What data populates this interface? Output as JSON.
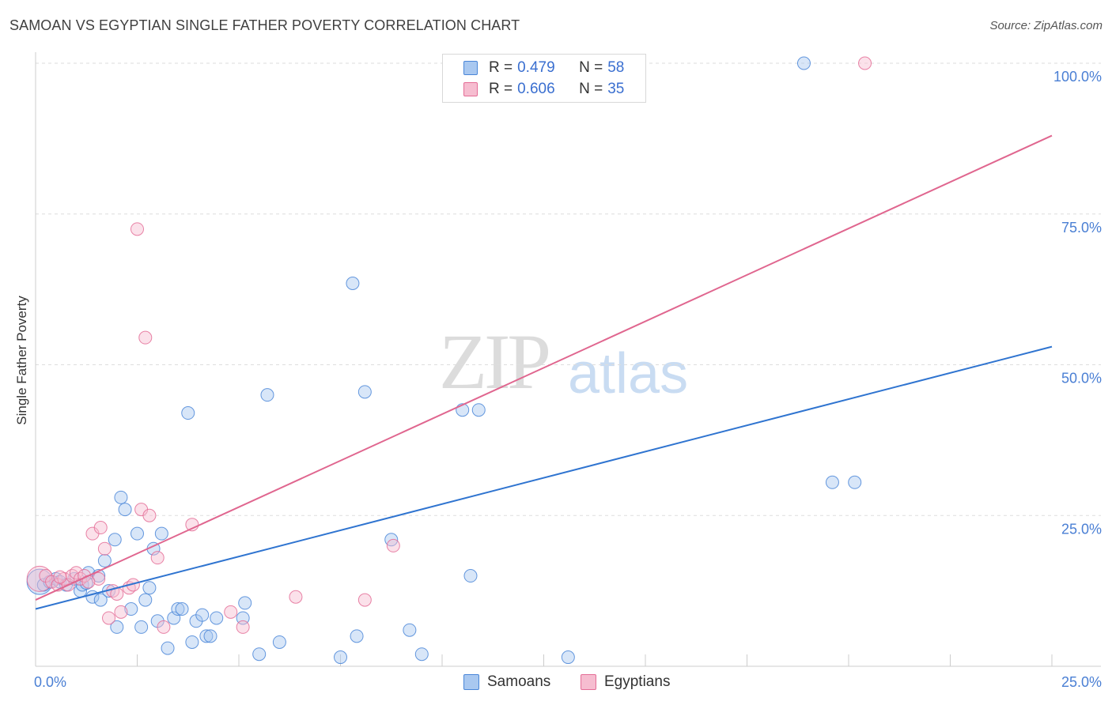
{
  "header": {
    "title": "SAMOAN VS EGYPTIAN SINGLE FATHER POVERTY CORRELATION CHART",
    "source": "Source: ZipAtlas.com"
  },
  "watermark": {
    "zip": "ZIP",
    "atlas": "atlas"
  },
  "legend": {
    "rows": [
      {
        "r_label": "R =",
        "r_value": "0.479",
        "n_label": "N =",
        "n_value": "58",
        "color": "#4a86d8"
      },
      {
        "r_label": "R =",
        "r_value": "0.606",
        "n_label": "N =",
        "n_value": "35",
        "color": "#e46d96"
      }
    ]
  },
  "bottom_legend": {
    "samoans": "Samoans",
    "egyptians": "Egyptians"
  },
  "chart_data": {
    "type": "scatter",
    "title": "SAMOAN VS EGYPTIAN SINGLE FATHER POVERTY CORRELATION CHART",
    "xlabel": "",
    "ylabel": "Single Father Poverty",
    "xlim": [
      0,
      25
    ],
    "ylim": [
      0,
      100
    ],
    "x_tick_labels": [
      "0.0%",
      "25.0%"
    ],
    "y_ticks": [
      25,
      50,
      75,
      100
    ],
    "y_tick_labels": [
      "25.0%",
      "50.0%",
      "75.0%",
      "100.0%"
    ],
    "grid": true,
    "series": [
      {
        "name": "Samoans",
        "color": "#4a86d8",
        "fill": "#a9c8f0",
        "R": 0.479,
        "N": 58,
        "trend": {
          "x": [
            0,
            25
          ],
          "y": [
            9.5,
            53.0
          ]
        },
        "points": [
          {
            "x": 0.1,
            "y": 14.0,
            "big": true
          },
          {
            "x": 0.2,
            "y": 13.5
          },
          {
            "x": 0.35,
            "y": 14.0
          },
          {
            "x": 0.5,
            "y": 14.5
          },
          {
            "x": 0.6,
            "y": 14.0
          },
          {
            "x": 0.75,
            "y": 13.5
          },
          {
            "x": 0.95,
            "y": 14.5
          },
          {
            "x": 1.1,
            "y": 12.5
          },
          {
            "x": 1.15,
            "y": 13.5
          },
          {
            "x": 1.3,
            "y": 15.5
          },
          {
            "x": 1.4,
            "y": 11.5
          },
          {
            "x": 1.55,
            "y": 15.0
          },
          {
            "x": 1.6,
            "y": 11.0
          },
          {
            "x": 1.7,
            "y": 17.5
          },
          {
            "x": 1.8,
            "y": 12.5
          },
          {
            "x": 1.95,
            "y": 21.0
          },
          {
            "x": 2.0,
            "y": 6.5
          },
          {
            "x": 2.1,
            "y": 28.0
          },
          {
            "x": 2.2,
            "y": 26.0
          },
          {
            "x": 2.35,
            "y": 9.5
          },
          {
            "x": 2.5,
            "y": 22.0
          },
          {
            "x": 2.6,
            "y": 6.5
          },
          {
            "x": 2.7,
            "y": 11.0
          },
          {
            "x": 2.8,
            "y": 13.0
          },
          {
            "x": 2.9,
            "y": 19.5
          },
          {
            "x": 3.0,
            "y": 7.5
          },
          {
            "x": 3.1,
            "y": 22.0
          },
          {
            "x": 3.25,
            "y": 3.0
          },
          {
            "x": 3.4,
            "y": 8.0
          },
          {
            "x": 3.5,
            "y": 9.5
          },
          {
            "x": 3.6,
            "y": 9.5
          },
          {
            "x": 3.75,
            "y": 42.0
          },
          {
            "x": 3.85,
            "y": 4.0
          },
          {
            "x": 3.95,
            "y": 7.5
          },
          {
            "x": 4.1,
            "y": 8.5
          },
          {
            "x": 4.2,
            "y": 5.0
          },
          {
            "x": 4.3,
            "y": 5.0
          },
          {
            "x": 4.45,
            "y": 8.0
          },
          {
            "x": 5.1,
            "y": 8.0
          },
          {
            "x": 5.15,
            "y": 10.5
          },
          {
            "x": 5.5,
            "y": 2.0
          },
          {
            "x": 5.7,
            "y": 45.0
          },
          {
            "x": 6.0,
            "y": 4.0
          },
          {
            "x": 7.5,
            "y": 1.5
          },
          {
            "x": 7.8,
            "y": 63.5
          },
          {
            "x": 7.9,
            "y": 5.0
          },
          {
            "x": 8.1,
            "y": 45.5
          },
          {
            "x": 8.75,
            "y": 21.0
          },
          {
            "x": 9.2,
            "y": 6.0
          },
          {
            "x": 9.5,
            "y": 2.0
          },
          {
            "x": 10.5,
            "y": 42.5
          },
          {
            "x": 10.7,
            "y": 15.0
          },
          {
            "x": 10.9,
            "y": 42.5
          },
          {
            "x": 13.1,
            "y": 1.5
          },
          {
            "x": 18.9,
            "y": 100.0
          },
          {
            "x": 19.6,
            "y": 30.5
          },
          {
            "x": 20.15,
            "y": 30.5
          },
          {
            "x": 1.25,
            "y": 13.8
          }
        ]
      },
      {
        "name": "Egyptians",
        "color": "#e46d96",
        "fill": "#f6bdd0",
        "R": 0.606,
        "N": 35,
        "trend": {
          "x": [
            0,
            25
          ],
          "y": [
            11.0,
            88.0
          ]
        },
        "points": [
          {
            "x": 0.1,
            "y": 14.5,
            "big": true
          },
          {
            "x": 0.25,
            "y": 15.0
          },
          {
            "x": 0.4,
            "y": 14.0
          },
          {
            "x": 0.55,
            "y": 13.5
          },
          {
            "x": 0.7,
            "y": 14.5
          },
          {
            "x": 0.8,
            "y": 13.5
          },
          {
            "x": 0.9,
            "y": 15.0
          },
          {
            "x": 1.0,
            "y": 15.5
          },
          {
            "x": 1.1,
            "y": 14.5
          },
          {
            "x": 1.2,
            "y": 15.0
          },
          {
            "x": 1.4,
            "y": 22.0
          },
          {
            "x": 1.55,
            "y": 14.5
          },
          {
            "x": 1.6,
            "y": 23.0
          },
          {
            "x": 1.7,
            "y": 19.5
          },
          {
            "x": 1.8,
            "y": 8.0
          },
          {
            "x": 1.9,
            "y": 12.5
          },
          {
            "x": 2.0,
            "y": 12.0
          },
          {
            "x": 2.1,
            "y": 9.0
          },
          {
            "x": 2.3,
            "y": 13.0
          },
          {
            "x": 2.4,
            "y": 13.5
          },
          {
            "x": 2.5,
            "y": 72.5
          },
          {
            "x": 2.6,
            "y": 26.0
          },
          {
            "x": 2.7,
            "y": 54.5
          },
          {
            "x": 2.8,
            "y": 25.0
          },
          {
            "x": 3.0,
            "y": 18.0
          },
          {
            "x": 3.15,
            "y": 6.5
          },
          {
            "x": 3.85,
            "y": 23.5
          },
          {
            "x": 4.8,
            "y": 9.0
          },
          {
            "x": 5.1,
            "y": 6.5
          },
          {
            "x": 6.4,
            "y": 11.5
          },
          {
            "x": 8.1,
            "y": 11.0
          },
          {
            "x": 8.8,
            "y": 20.0
          },
          {
            "x": 20.4,
            "y": 100.0
          },
          {
            "x": 1.3,
            "y": 14.0
          },
          {
            "x": 0.6,
            "y": 14.8
          }
        ]
      }
    ]
  }
}
